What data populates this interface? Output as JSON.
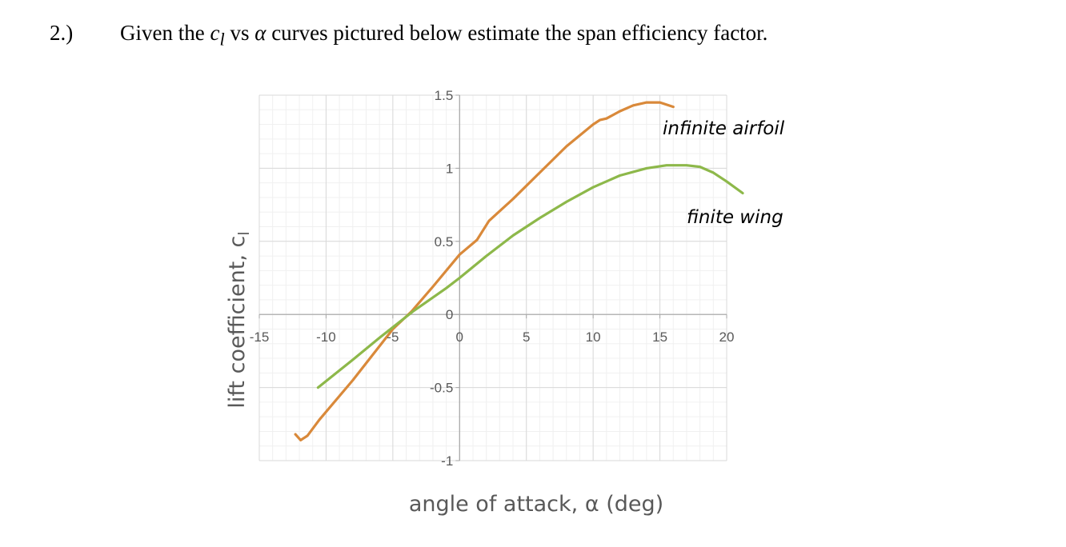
{
  "problem": {
    "number": "2.)",
    "text_before": "Given the ",
    "c_symbol": "c",
    "c_subscript": "l",
    "text_vs": " vs ",
    "alpha_symbol": "α",
    "text_after": " curves pictured below estimate the span efficiency factor."
  },
  "chart_data": {
    "type": "line",
    "xlabel": "angle of attack, α (deg)",
    "ylabel": "lift coefficient, c",
    "ylabel_subscript": "l",
    "xlim": [
      -15,
      20
    ],
    "ylim": [
      -1,
      1.5
    ],
    "x_ticks": [
      "-15",
      "-10",
      "-5",
      "0",
      "5",
      "10",
      "15",
      "20"
    ],
    "y_ticks": [
      "1.5",
      "1",
      "0.5",
      "0",
      "-0.5",
      "-1"
    ],
    "grid": true,
    "series": [
      {
        "name": "infinite airfoil",
        "color": "#d9893a",
        "points": [
          [
            -12.3,
            -0.82
          ],
          [
            -11.9,
            -0.86
          ],
          [
            -11.4,
            -0.83
          ],
          [
            -10.5,
            -0.72
          ],
          [
            -8,
            -0.45
          ],
          [
            -5,
            -0.1
          ],
          [
            -3.6,
            0.02
          ],
          [
            -2,
            0.19
          ],
          [
            0,
            0.41
          ],
          [
            1.3,
            0.51
          ],
          [
            2.2,
            0.64
          ],
          [
            4,
            0.79
          ],
          [
            6,
            0.97
          ],
          [
            8,
            1.15
          ],
          [
            10,
            1.3
          ],
          [
            10.5,
            1.33
          ],
          [
            11,
            1.34
          ],
          [
            12,
            1.39
          ],
          [
            13,
            1.43
          ],
          [
            14,
            1.45
          ],
          [
            15,
            1.45
          ],
          [
            16,
            1.42
          ]
        ]
      },
      {
        "name": "finite wing",
        "color": "#8db84a",
        "points": [
          [
            -10.6,
            -0.5
          ],
          [
            -8,
            -0.31
          ],
          [
            -6,
            -0.16
          ],
          [
            -3.5,
            0.02
          ],
          [
            -1,
            0.18
          ],
          [
            0,
            0.25
          ],
          [
            2,
            0.4
          ],
          [
            4,
            0.54
          ],
          [
            6,
            0.66
          ],
          [
            8,
            0.77
          ],
          [
            10,
            0.87
          ],
          [
            12,
            0.95
          ],
          [
            14,
            1.0
          ],
          [
            15.5,
            1.02
          ],
          [
            17,
            1.02
          ],
          [
            18,
            1.01
          ],
          [
            19,
            0.97
          ],
          [
            20,
            0.91
          ],
          [
            21.2,
            0.83
          ]
        ]
      }
    ]
  }
}
